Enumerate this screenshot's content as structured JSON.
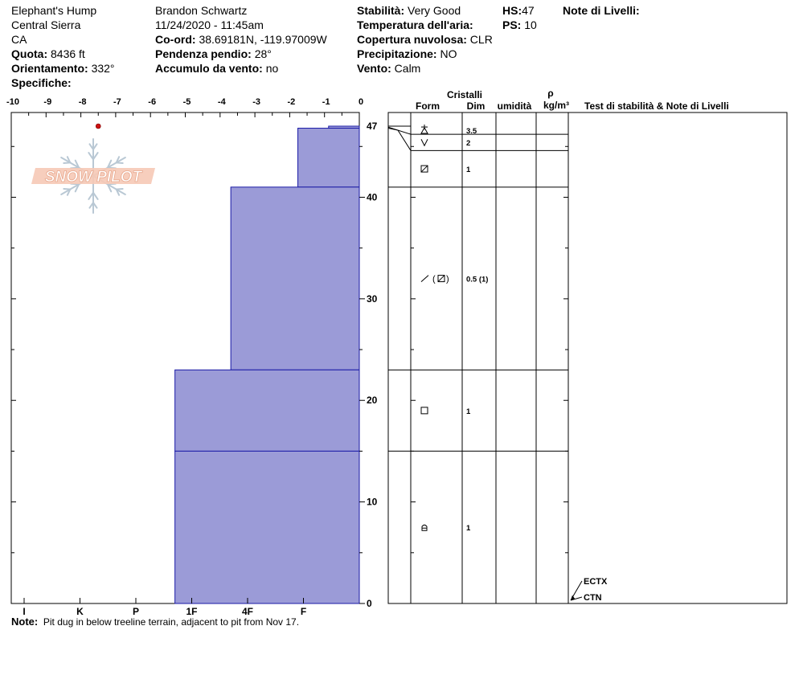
{
  "header": {
    "location": "Elephant's Hump",
    "range": "Central Sierra",
    "state": "CA",
    "quota_label": "Quota:",
    "quota_value": "8436 ft",
    "orient_label": "Orientamento:",
    "orient_value": "332°",
    "specifiche_label": "Specifiche:",
    "observer": "Brandon Schwartz",
    "datetime": "11/24/2020 - 11:45am",
    "coord_label": "Co-ord:",
    "coord_value": "38.69181N, -119.97009W",
    "slope_label": "Pendenza pendio:",
    "slope_value": "28°",
    "wind_load_label": "Accumulo da vento:",
    "wind_load_value": "no",
    "stability_label": "Stabilità:",
    "stability_value": "Very Good",
    "air_temp_label": "Temperatura dell'aria:",
    "cloud_label": "Copertura nuvolosa:",
    "cloud_value": "CLR",
    "precip_label": "Precipitazione:",
    "precip_value": "NO",
    "wind_label": "Vento:",
    "wind_value": "Calm",
    "hs_label": "HS:",
    "hs_value": "47",
    "ps_label": "PS:",
    "ps_value": "10",
    "layer_notes_label": "Note di Livelli:"
  },
  "columns": {
    "crystals": "Cristalli",
    "form": "Form",
    "size": "Dim",
    "moisture": "umidità",
    "rho": "ρ",
    "density_unit": "kg/m³",
    "tests": "Test di stabilità & Note di Livelli"
  },
  "logo_text": "SNOW PILOT",
  "note": {
    "label": "Note:",
    "text": "Pit dug in below treeline terrain, adjacent to pit from Nov 17."
  },
  "chart_data": {
    "type": "bar",
    "temperature_axis": {
      "range": [
        -10,
        0
      ],
      "ticks": [
        "-10",
        "-9",
        "-8",
        "-7",
        "-6",
        "-5",
        "-4",
        "-3",
        "-2",
        "-1",
        "0"
      ]
    },
    "depth_axis": {
      "range": [
        0,
        47
      ],
      "ticks": [
        "0",
        "10",
        "20",
        "30",
        "40",
        "47"
      ]
    },
    "hardness_axis": {
      "ticks": [
        {
          "label": "I",
          "value": 6
        },
        {
          "label": "K",
          "value": 5
        },
        {
          "label": "P",
          "value": 4
        },
        {
          "label": "1F",
          "value": 3
        },
        {
          "label": "4F",
          "value": 2
        },
        {
          "label": "F",
          "value": 1
        }
      ]
    },
    "temperature_points": [
      {
        "depth": 47,
        "temp": -7.5
      }
    ],
    "hardness_layers": [
      {
        "top": 47,
        "bottom": 46.8,
        "hardness": 0.55
      },
      {
        "top": 46.8,
        "bottom": 41,
        "hardness": 1.1
      },
      {
        "top": 41,
        "bottom": 23,
        "hardness": 2.3
      },
      {
        "top": 23,
        "bottom": 15,
        "hardness": 3.3
      },
      {
        "top": 15,
        "bottom": 0,
        "hardness": 3.3
      }
    ],
    "layer_rows": [
      {
        "top": 47,
        "bottom": 46.2,
        "form": "precip",
        "size": "3.5"
      },
      {
        "top": 46.2,
        "bottom": 44.6,
        "form": "v",
        "size": "2"
      },
      {
        "top": 44.6,
        "bottom": 41,
        "form": "boxslash",
        "size": "1"
      },
      {
        "top": 41,
        "bottom": 23,
        "form": "mixed",
        "secondary_mark": "(",
        "secondary_mark_end": ")",
        "size": "0.5 (1)"
      },
      {
        "top": 23,
        "bottom": 15,
        "form": "square",
        "size": "1"
      },
      {
        "top": 15,
        "bottom": 0,
        "form": "cup",
        "size": "1"
      }
    ],
    "tests": [
      {
        "label": "ECTX",
        "depth": 0
      },
      {
        "label": "CTN",
        "depth": 0
      }
    ]
  }
}
